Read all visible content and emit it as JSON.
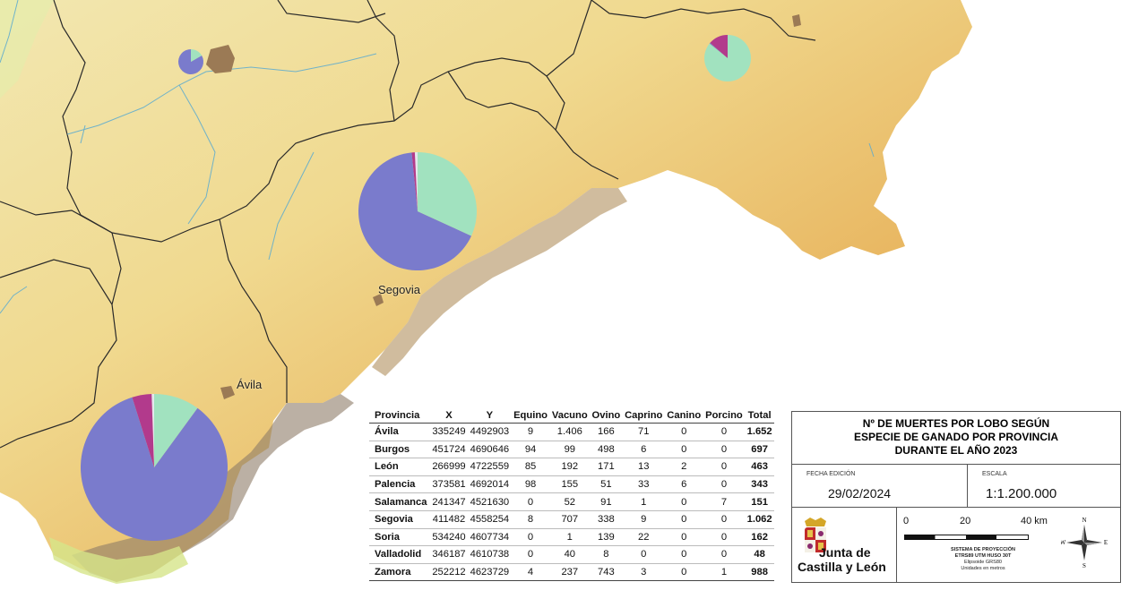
{
  "map_labels": {
    "segovia": "Segovia",
    "avila": "Ávila"
  },
  "pie_colors": {
    "equino": "#e5e6ee",
    "vacuno": "#7a7bcc",
    "ovino": "#a1e2bf",
    "caprino": "#b23a8c",
    "canino": "#e5e6ee",
    "porcino": "#e5e6ee"
  },
  "pies": [
    {
      "province": "Segovia",
      "values": [
        8,
        707,
        338,
        9,
        0,
        0
      ]
    },
    {
      "province": "Ávila",
      "values": [
        9,
        1406,
        166,
        71,
        0,
        0
      ]
    },
    {
      "province": "Soria",
      "values": [
        0,
        1,
        139,
        22,
        0,
        0
      ]
    },
    {
      "province": "Valladolid",
      "values": [
        0,
        40,
        8,
        0,
        0,
        0
      ]
    }
  ],
  "table": {
    "headers": [
      "Provincia",
      "X",
      "Y",
      "Equino",
      "Vacuno",
      "Ovino",
      "Caprino",
      "Canino",
      "Porcino",
      "Total"
    ],
    "rows": [
      [
        "Ávila",
        "335249",
        "4492903",
        "9",
        "1.406",
        "166",
        "71",
        "0",
        "0",
        "1.652"
      ],
      [
        "Burgos",
        "451724",
        "4690646",
        "94",
        "99",
        "498",
        "6",
        "0",
        "0",
        "697"
      ],
      [
        "León",
        "266999",
        "4722559",
        "85",
        "192",
        "171",
        "13",
        "2",
        "0",
        "463"
      ],
      [
        "Palencia",
        "373581",
        "4692014",
        "98",
        "155",
        "51",
        "33",
        "6",
        "0",
        "343"
      ],
      [
        "Salamanca",
        "241347",
        "4521630",
        "0",
        "52",
        "91",
        "1",
        "0",
        "7",
        "151"
      ],
      [
        "Segovia",
        "411482",
        "4558254",
        "8",
        "707",
        "338",
        "9",
        "0",
        "0",
        "1.062"
      ],
      [
        "Soria",
        "534240",
        "4607734",
        "0",
        "1",
        "139",
        "22",
        "0",
        "0",
        "162"
      ],
      [
        "Valladolid",
        "346187",
        "4610738",
        "0",
        "40",
        "8",
        "0",
        "0",
        "0",
        "48"
      ],
      [
        "Zamora",
        "252212",
        "4623729",
        "4",
        "237",
        "743",
        "3",
        "0",
        "1",
        "988"
      ]
    ]
  },
  "legend": {
    "title_lines": [
      "Nº DE MUERTES POR LOBO SEGÚN",
      "ESPECIE DE GANADO POR PROVINCIA",
      "DURANTE EL AÑO 2023"
    ],
    "fecha_label": "FECHA EDICIÓN",
    "fecha_value": "29/02/2024",
    "escala_label": "ESCALA",
    "escala_value": "1:1.200.000",
    "logo_line1": "Junta de",
    "logo_line2": "Castilla y León",
    "scale_ticks": [
      "0",
      "20",
      "40 km"
    ],
    "proj_line1": "SISTEMA DE PROYECCIÓN",
    "proj_line2": "ETRS89 UTM HUSO 30T",
    "proj_line3": "Elipsoide GRS80",
    "proj_line4": "Unidades en metros",
    "compass": {
      "n": "N",
      "s": "S",
      "e": "E",
      "w": "W"
    }
  }
}
